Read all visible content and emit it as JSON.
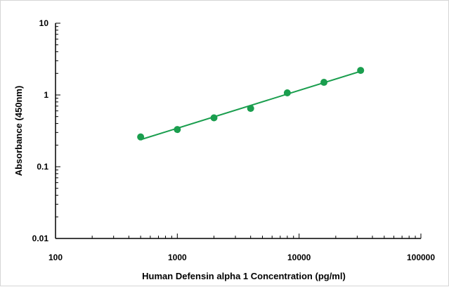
{
  "chart_data": {
    "type": "scatter",
    "title": "",
    "xlabel": "Human Defensin alpha 1 Concentration (pg/ml)",
    "ylabel": "Absorbance (450nm)",
    "x_scale": "log",
    "y_scale": "log",
    "xlim": [
      100,
      100000
    ],
    "ylim": [
      0.01,
      10
    ],
    "x_ticks": [
      "100",
      "1000",
      "10000",
      "100000"
    ],
    "y_ticks": [
      "0.01",
      "0.1",
      "1",
      "10"
    ],
    "grid": false,
    "legend": false,
    "series": [
      {
        "x": [
          500,
          1000,
          2000,
          4000,
          8000,
          16000,
          32000
        ],
        "y": [
          0.26,
          0.33,
          0.48,
          0.65,
          1.07,
          1.5,
          2.2
        ],
        "marker": "circle",
        "trendline": "line",
        "color": "#1a9e4e"
      }
    ]
  }
}
